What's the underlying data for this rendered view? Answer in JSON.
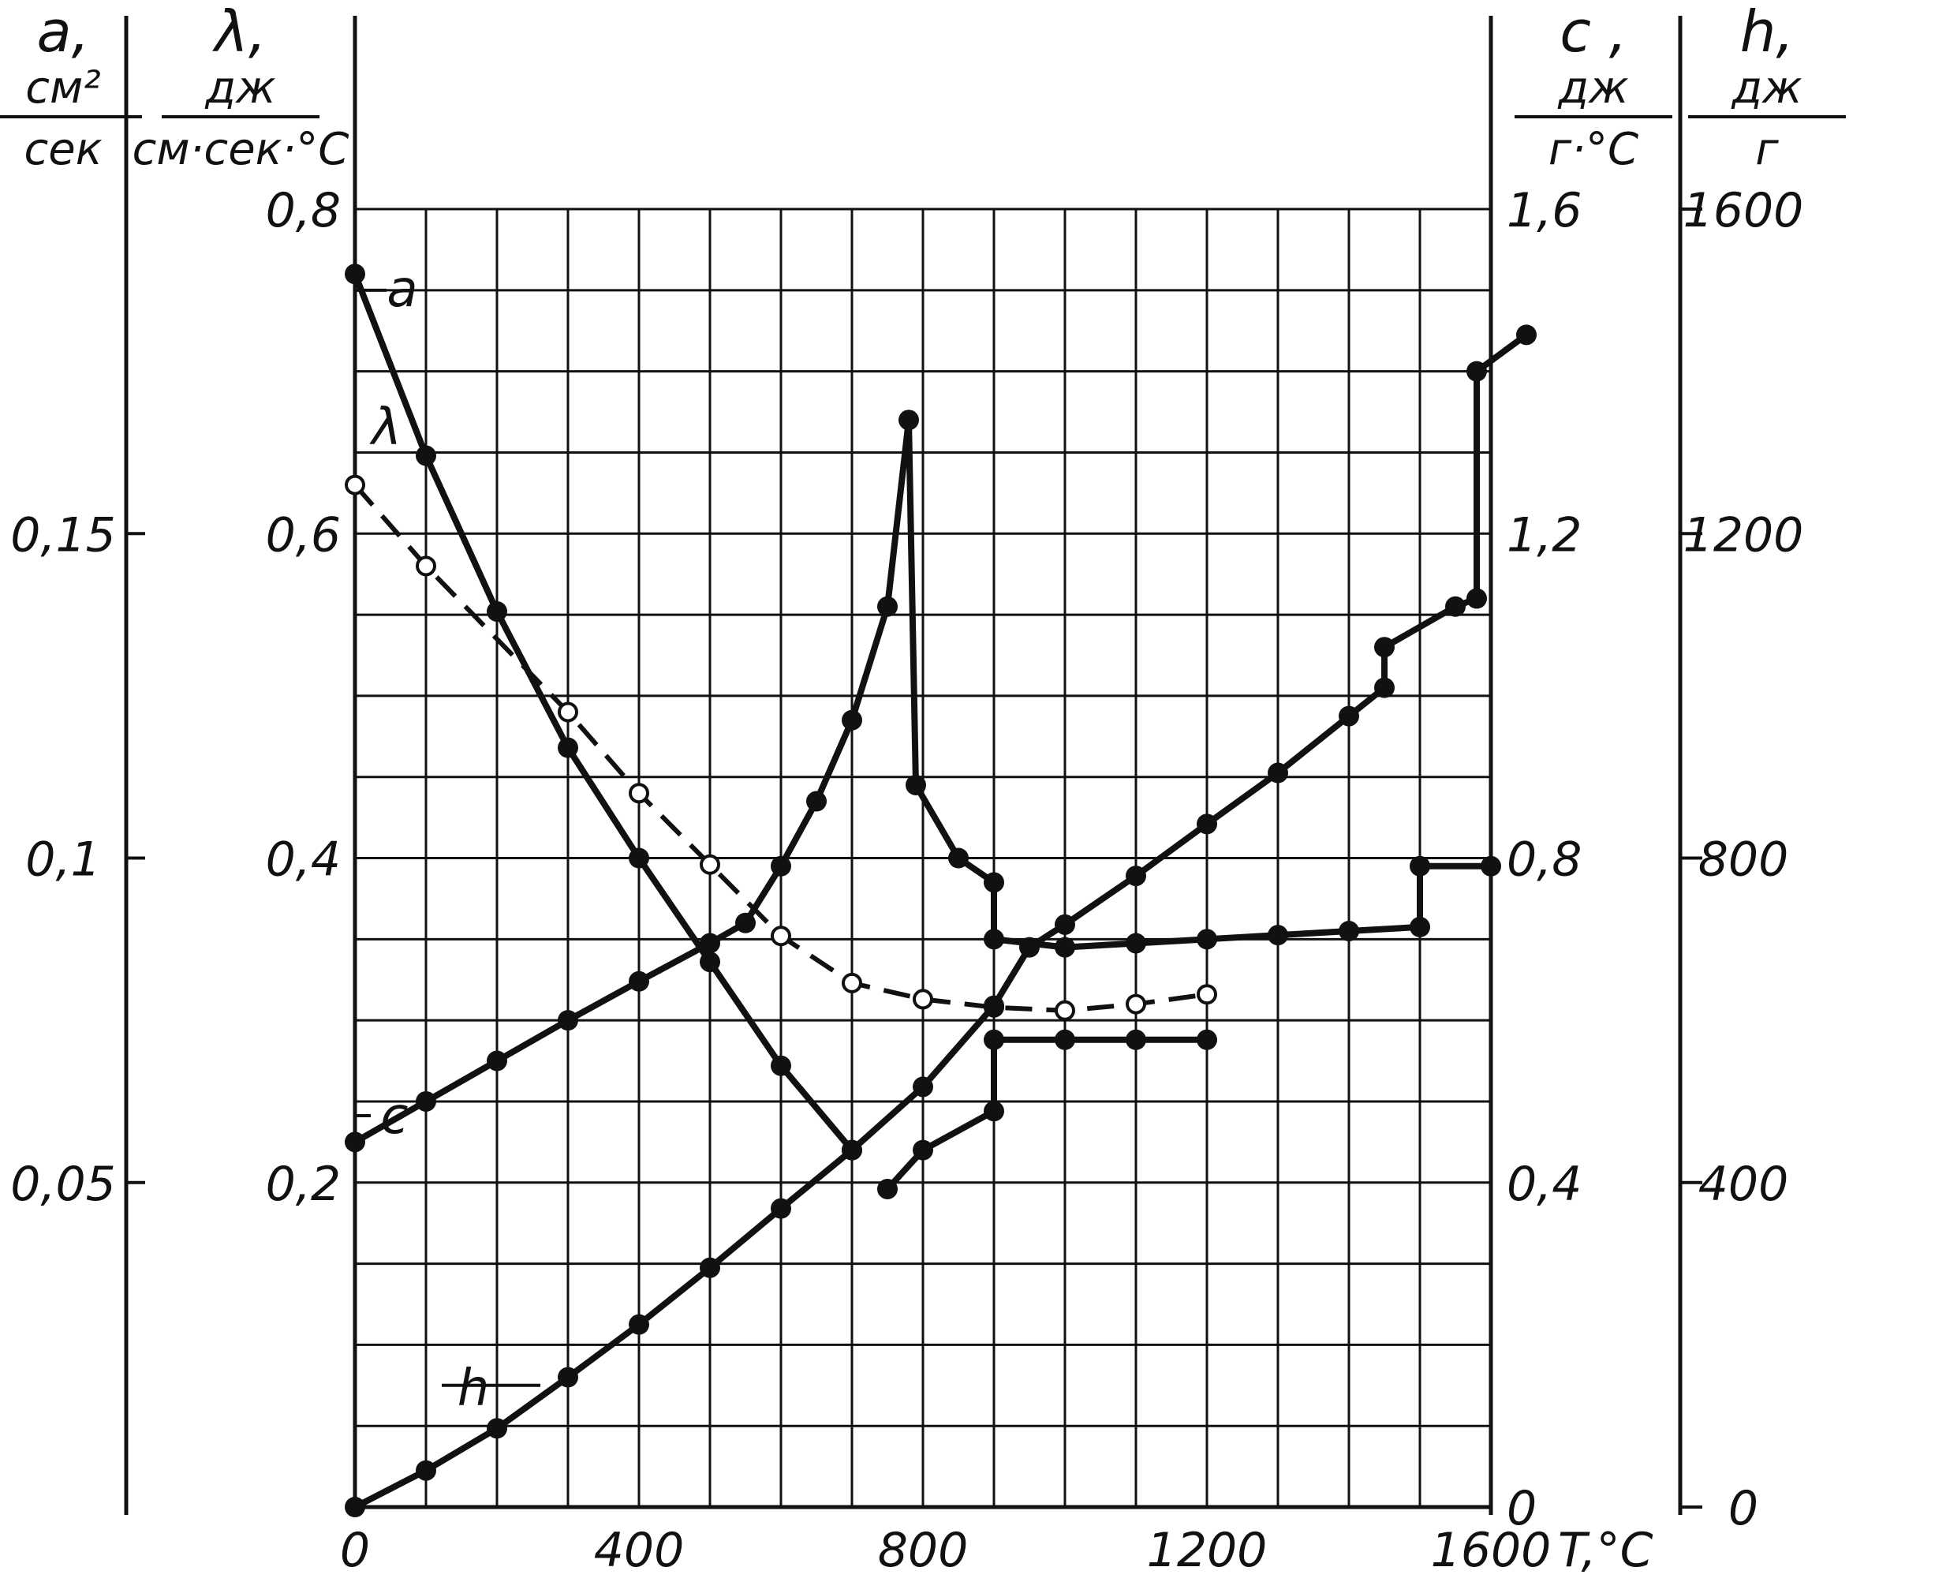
{
  "chart_data": {
    "type": "line",
    "x": {
      "label": "T,°C",
      "ticks": [
        0,
        400,
        800,
        1200,
        1600
      ],
      "range": [
        0,
        1600
      ]
    },
    "axes": {
      "a": {
        "symbol": "a,",
        "unit_num": "см²",
        "unit_den": "сек",
        "range": [
          0,
          0.2
        ],
        "ticks": [
          0.05,
          0.1,
          0.15
        ],
        "tick_labels": [
          "0,05",
          "0,1",
          "0,15"
        ]
      },
      "lambda": {
        "symbol": "λ,",
        "unit_num": "дж",
        "unit_den": "см·сек·°С",
        "range": [
          0,
          0.8
        ],
        "ticks": [
          0,
          0.2,
          0.4,
          0.6,
          0.8
        ],
        "tick_labels": [
          "",
          "0,2",
          "0,4",
          "0,6",
          "0,8"
        ]
      },
      "c": {
        "symbol": "c ,",
        "unit_num": "дж",
        "unit_den": "г·°С",
        "range": [
          0,
          1.6
        ],
        "ticks": [
          0,
          0.4,
          0.8,
          1.2,
          1.6
        ],
        "tick_labels": [
          "0",
          "0,4",
          "0,8",
          "1,2",
          "1,6"
        ]
      },
      "h": {
        "symbol": "h,",
        "unit_num": "дж",
        "unit_den": "г",
        "range": [
          0,
          1600
        ],
        "ticks": [
          0,
          400,
          800,
          1200,
          1600
        ],
        "tick_labels": [
          "0",
          "400",
          "800",
          "1200",
          "1600"
        ]
      }
    },
    "grid": true,
    "series": [
      {
        "name": "a",
        "axis": "a",
        "style": "solid",
        "marker": "filled",
        "points": [
          [
            0,
            0.19
          ],
          [
            100,
            0.162
          ],
          [
            200,
            0.138
          ],
          [
            300,
            0.117
          ],
          [
            400,
            0.1
          ],
          [
            500,
            0.084
          ],
          [
            600,
            0.068
          ],
          [
            700,
            0.055
          ],
          [
            750,
            0.049
          ],
          [
            800,
            0.055
          ],
          [
            900,
            0.061
          ]
        ],
        "curve_segments": [
          [
            0,
            7
          ],
          [
            8,
            10
          ]
        ],
        "jump_to": [
          900,
          0.072
        ],
        "tail": [
          [
            900,
            0.072
          ],
          [
            1000,
            0.072
          ],
          [
            1100,
            0.072
          ],
          [
            1200,
            0.072
          ]
        ]
      },
      {
        "name": "λ",
        "axis": "lambda",
        "style": "dashed",
        "marker": "open",
        "points": [
          [
            0,
            0.63
          ],
          [
            100,
            0.58
          ],
          [
            300,
            0.49
          ],
          [
            400,
            0.44
          ],
          [
            500,
            0.396
          ],
          [
            600,
            0.352
          ],
          [
            700,
            0.323
          ],
          [
            800,
            0.313
          ],
          [
            900,
            0.308
          ],
          [
            1000,
            0.306
          ],
          [
            1100,
            0.31
          ],
          [
            1200,
            0.316
          ]
        ]
      },
      {
        "name": "c",
        "axis": "c",
        "style": "solid",
        "marker": "filled",
        "points": [
          [
            0,
            0.45
          ],
          [
            100,
            0.5
          ],
          [
            200,
            0.55
          ],
          [
            300,
            0.6
          ],
          [
            400,
            0.648
          ],
          [
            500,
            0.695
          ],
          [
            550,
            0.72
          ],
          [
            600,
            0.79
          ],
          [
            650,
            0.87
          ],
          [
            700,
            0.97
          ],
          [
            750,
            1.11
          ],
          [
            780,
            1.34
          ],
          [
            790,
            0.89
          ],
          [
            850,
            0.8
          ],
          [
            900,
            0.77
          ],
          [
            900,
            0.7
          ],
          [
            1000,
            0.69
          ],
          [
            1100,
            0.695
          ],
          [
            1200,
            0.7
          ],
          [
            1300,
            0.705
          ],
          [
            1400,
            0.71
          ],
          [
            1500,
            0.715
          ],
          [
            1500,
            0.79
          ],
          [
            1600,
            0.79
          ]
        ]
      },
      {
        "name": "h",
        "axis": "h",
        "style": "solid",
        "marker": "filled",
        "points": [
          [
            0,
            0
          ],
          [
            100,
            45
          ],
          [
            200,
            97
          ],
          [
            300,
            160
          ],
          [
            400,
            225
          ],
          [
            500,
            295
          ],
          [
            600,
            368
          ],
          [
            700,
            440
          ],
          [
            800,
            518
          ],
          [
            900,
            618
          ],
          [
            950,
            690
          ],
          [
            1000,
            718
          ],
          [
            1100,
            778
          ],
          [
            1200,
            842
          ],
          [
            1300,
            905
          ],
          [
            1400,
            975
          ],
          [
            1450,
            1010
          ],
          [
            1450,
            1060
          ],
          [
            1550,
            1110
          ],
          [
            1580,
            1120
          ],
          [
            1580,
            1400
          ],
          [
            1650,
            1445
          ]
        ]
      }
    ],
    "curve_labels": {
      "a": "a",
      "lambda": "λ",
      "c": "c",
      "h": "h"
    }
  }
}
